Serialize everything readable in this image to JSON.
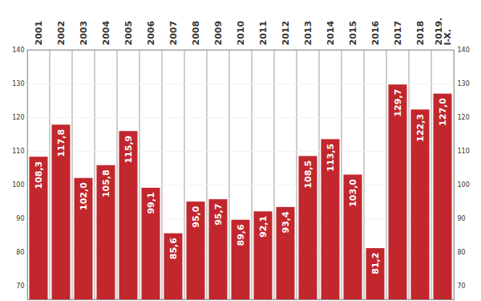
{
  "chart_data": {
    "type": "bar",
    "categories": [
      "2001",
      "2002",
      "2003",
      "2004",
      "2005",
      "2006",
      "2007",
      "2008",
      "2009",
      "2010",
      "2011",
      "2012",
      "2013",
      "2014",
      "2015",
      "2016",
      "2017",
      "2018",
      "2019.\nI-X."
    ],
    "values": [
      108.3,
      117.8,
      102.0,
      105.8,
      115.9,
      99.1,
      85.6,
      95.0,
      95.7,
      89.6,
      92.1,
      93.4,
      108.5,
      113.5,
      103.0,
      81.2,
      129.7,
      122.3,
      127.0
    ],
    "value_labels": [
      "108,3",
      "117,8",
      "102,0",
      "105,8",
      "115,9",
      "99,1",
      "85,6",
      "95,0",
      "95,7",
      "89,6",
      "92,1",
      "93,4",
      "108,5",
      "113,5",
      "103,0",
      "81,2",
      "129,7",
      "122,3",
      "127,0"
    ],
    "color": "#c1272d",
    "ylim": [
      66,
      140
    ],
    "yticks": [
      70,
      80,
      90,
      100,
      110,
      120,
      130,
      140
    ],
    "grid": true,
    "data_labels": true
  }
}
